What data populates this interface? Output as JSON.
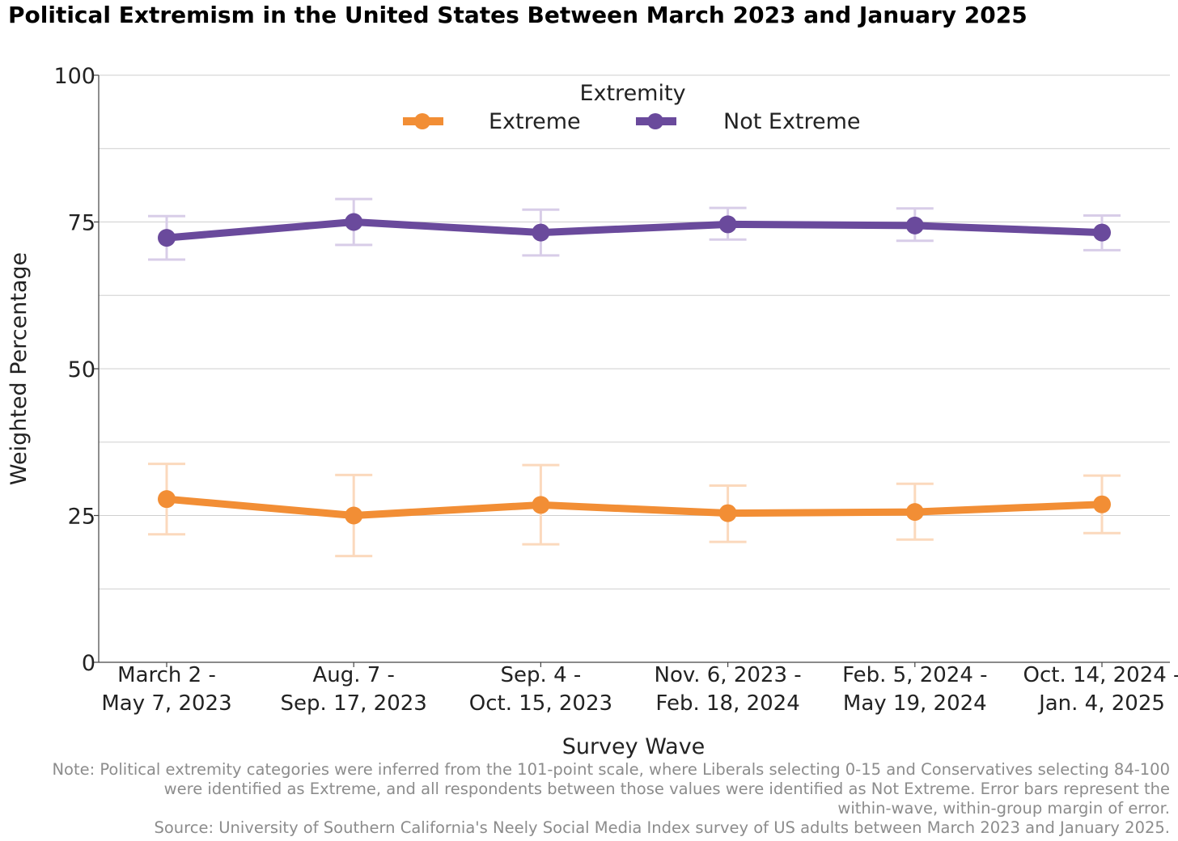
{
  "title": "Political Extremism in the United States Between March 2023 and January 2025",
  "legend": {
    "title": "Extremity",
    "items": [
      "Extreme",
      "Not Extreme"
    ]
  },
  "colors": {
    "extreme": "#f28e35",
    "extreme_error": "#fbd9bd",
    "not_extreme": "#6a4a9c",
    "not_extreme_error": "#d8cde8",
    "grid": "#cfcfcf"
  },
  "chart_data": {
    "type": "line",
    "title": "Political Extremism in the United States Between March 2023 and January 2025",
    "xlabel": "Survey Wave",
    "ylabel": "Weighted Percentage",
    "ylim": [
      0,
      100
    ],
    "yticks": [
      0,
      25,
      50,
      75,
      100
    ],
    "grid": true,
    "legend_position": "top-center",
    "categories": [
      [
        "March 2 -",
        "May 7, 2023"
      ],
      [
        "Aug. 7 -",
        "Sep. 17, 2023"
      ],
      [
        "Sep. 4 -",
        "Oct. 15, 2023"
      ],
      [
        "Nov. 6, 2023 -",
        "Feb. 18, 2024"
      ],
      [
        "Feb. 5, 2024 -",
        "May 19, 2024"
      ],
      [
        "Oct. 14, 2024 -",
        "Jan. 4, 2025"
      ]
    ],
    "series": [
      {
        "name": "Extreme",
        "values": [
          27.8,
          25.0,
          26.8,
          25.4,
          25.6,
          26.9
        ],
        "error_low": [
          21.8,
          18.1,
          20.1,
          20.5,
          20.9,
          22.0
        ],
        "error_high": [
          33.8,
          31.9,
          33.6,
          30.1,
          30.4,
          31.8
        ]
      },
      {
        "name": "Not Extreme",
        "values": [
          72.3,
          75.0,
          73.2,
          74.6,
          74.4,
          73.2
        ],
        "error_low": [
          68.6,
          71.1,
          69.3,
          72.0,
          71.8,
          70.2
        ],
        "error_high": [
          76.0,
          78.9,
          77.1,
          77.4,
          77.3,
          76.1
        ]
      }
    ]
  },
  "footnote": {
    "lines": [
      "Note: Political extremity categories were inferred from the 101-point scale, where Liberals selecting 0-15 and Conservatives selecting 84-100",
      "were identified as Extreme, and all respondents between those values were identified as Not Extreme. Error bars represent the",
      "within-wave, within-group margin of error.",
      "Source: University of Southern California's Neely Social Media Index survey of US adults between March 2023 and January 2025."
    ]
  }
}
